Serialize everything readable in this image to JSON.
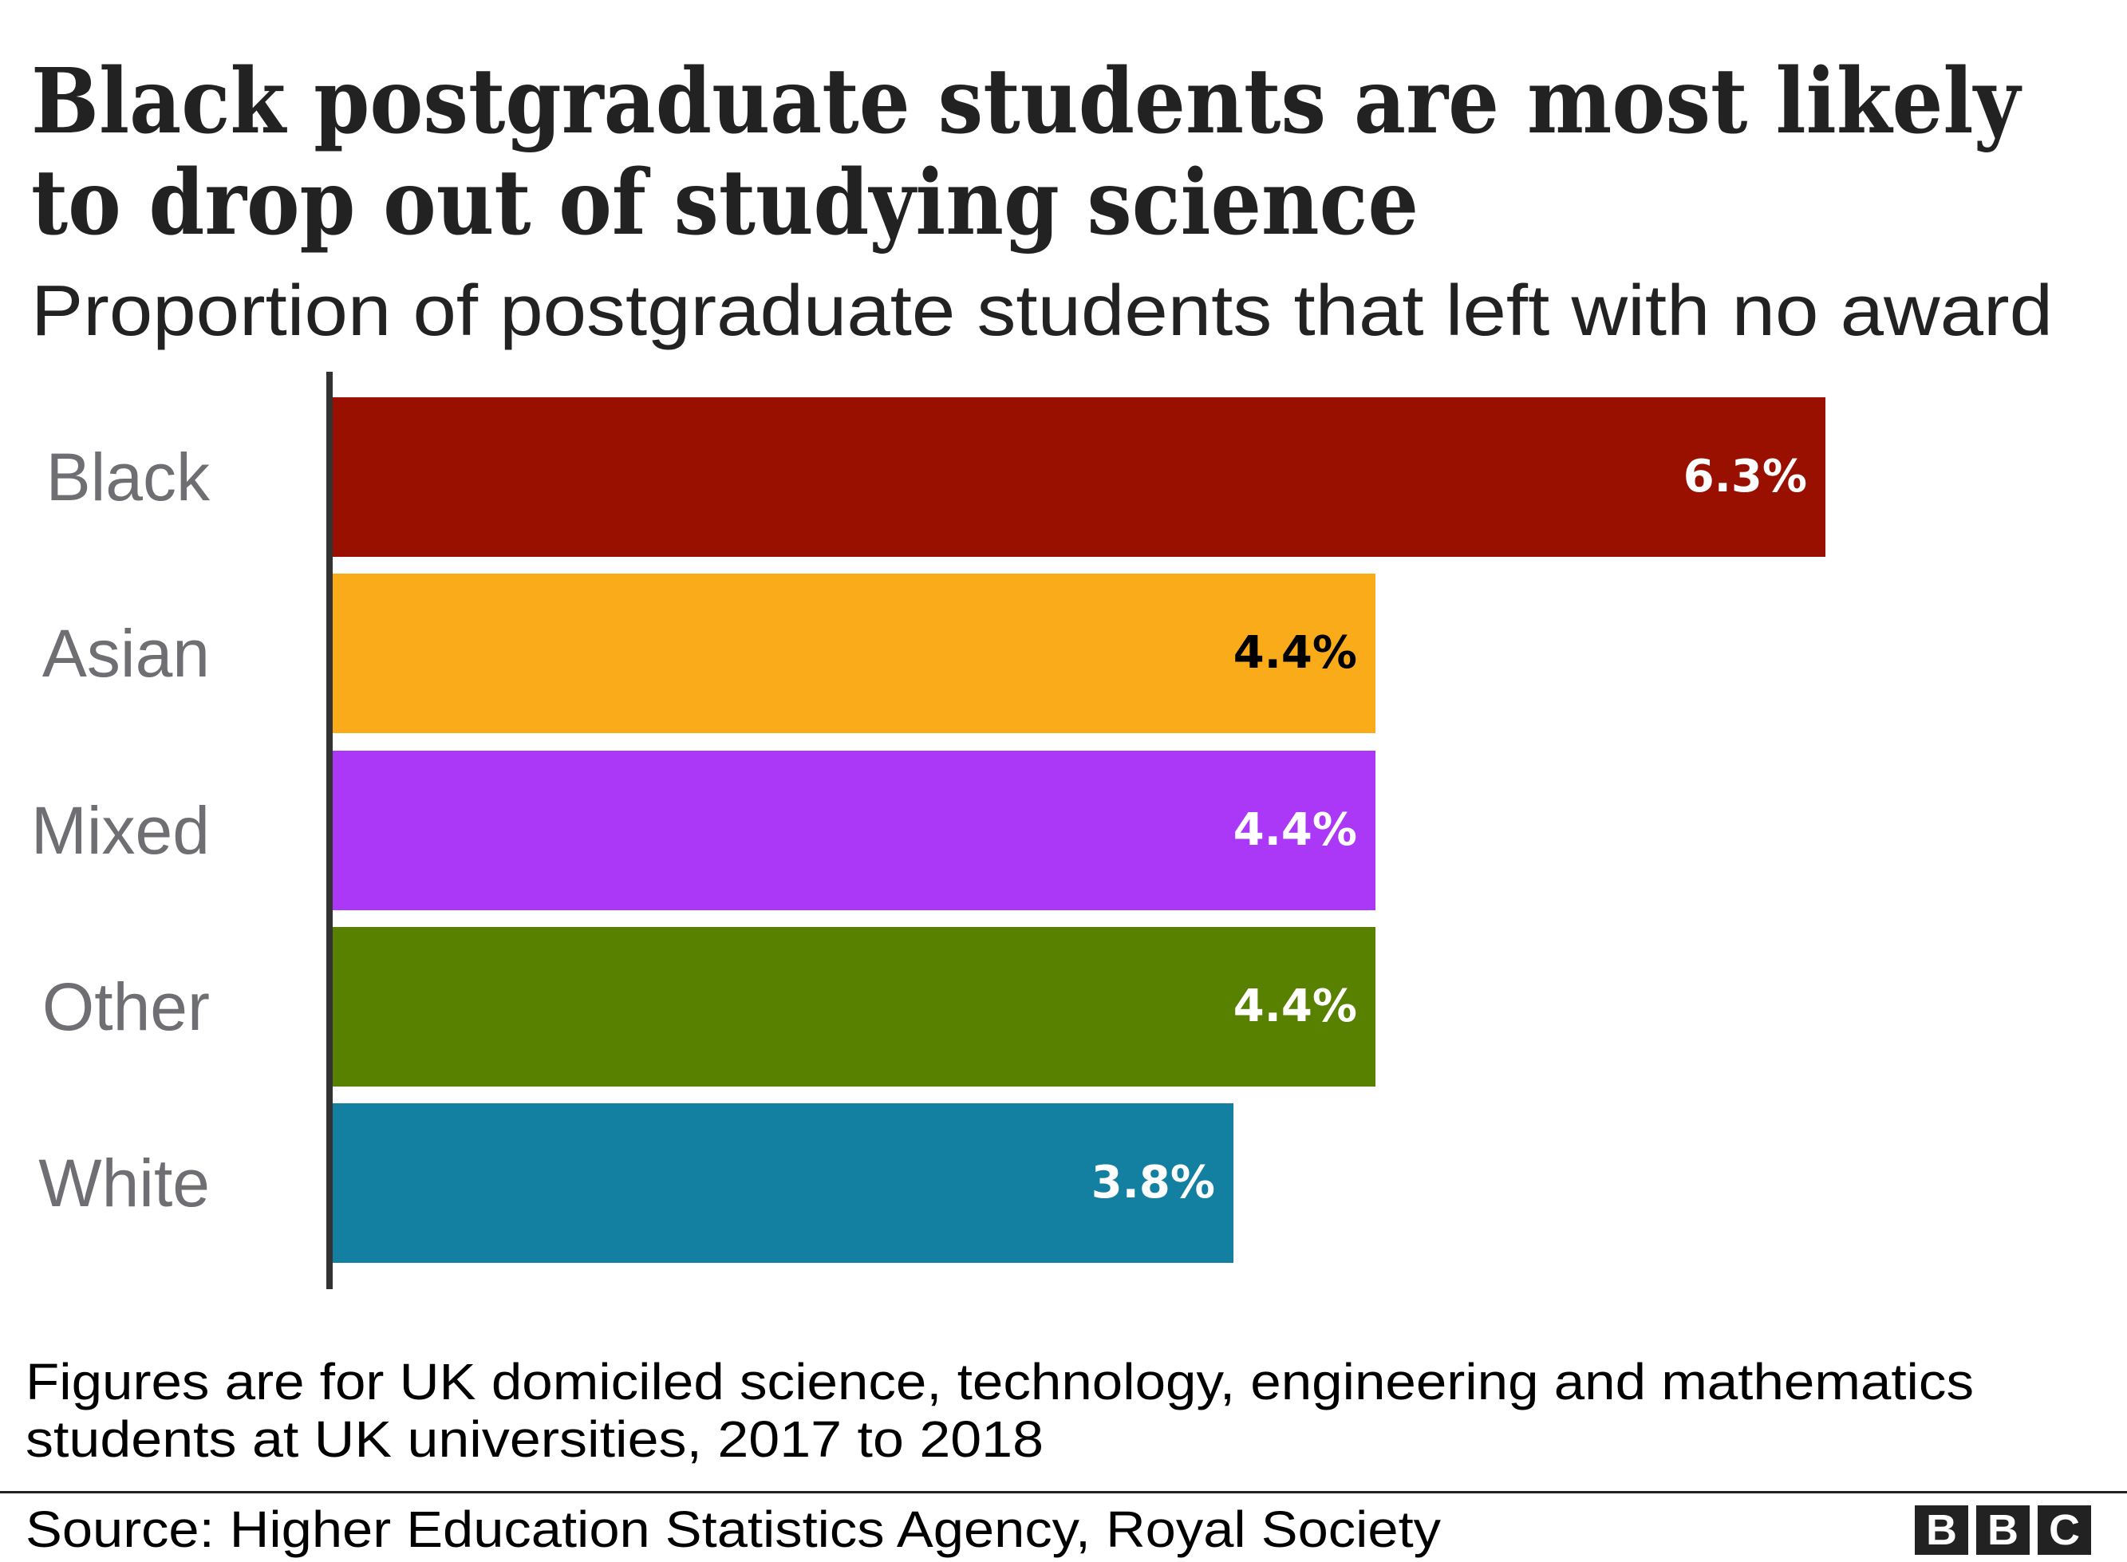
{
  "header": {
    "title_line_1": "Black postgraduate students are most likely",
    "title_line_2": "to drop out of studying science",
    "subtitle": "Proportion of postgraduate students that left with no award"
  },
  "bars": [
    {
      "label": "Black",
      "value": 6.3,
      "value_label": "6.3%",
      "color": "#990F00",
      "text_color": "#ffffff"
    },
    {
      "label": "Asian",
      "value": 4.4,
      "value_label": "4.4%",
      "color": "#FAAB19",
      "text_color": "#000000"
    },
    {
      "label": "Mixed",
      "value": 4.4,
      "value_label": "4.4%",
      "color": "#AB37F7",
      "text_color": "#ffffff"
    },
    {
      "label": "Other",
      "value": 4.4,
      "value_label": "4.4%",
      "color": "#588100",
      "text_color": "#ffffff"
    },
    {
      "label": "White",
      "value": 3.8,
      "value_label": "3.8%",
      "color": "#1380A1",
      "text_color": "#ffffff"
    }
  ],
  "footer": {
    "note_line_1": "Figures are for UK domiciled science, technology, engineering and mathematics",
    "note_line_2": "students at UK universities, 2017 to 2018",
    "source": "Source: Higher Education Statistics Agency, Royal Society",
    "logo_letters": [
      "B",
      "B",
      "C"
    ]
  },
  "chart_data": {
    "type": "bar",
    "orientation": "horizontal",
    "title": "Black postgraduate students are most likely to drop out of studying science",
    "subtitle": "Proportion of postgraduate students that left with no award",
    "categories": [
      "Black",
      "Asian",
      "Mixed",
      "Other",
      "White"
    ],
    "values": [
      6.3,
      4.4,
      4.4,
      4.4,
      3.8
    ],
    "value_labels": [
      "6.3%",
      "4.4%",
      "4.4%",
      "4.4%",
      "3.8%"
    ],
    "unit": "%",
    "colors": [
      "#990F00",
      "#FAAB19",
      "#AB37F7",
      "#588100",
      "#1380A1"
    ],
    "xlabel": "",
    "ylabel": "",
    "grid": false,
    "legend": null,
    "note": "Figures are for UK domiciled science, technology, engineering and mathematics students at UK universities, 2017 to 2018",
    "source": "Source: Higher Education Statistics Agency, Royal Society"
  }
}
